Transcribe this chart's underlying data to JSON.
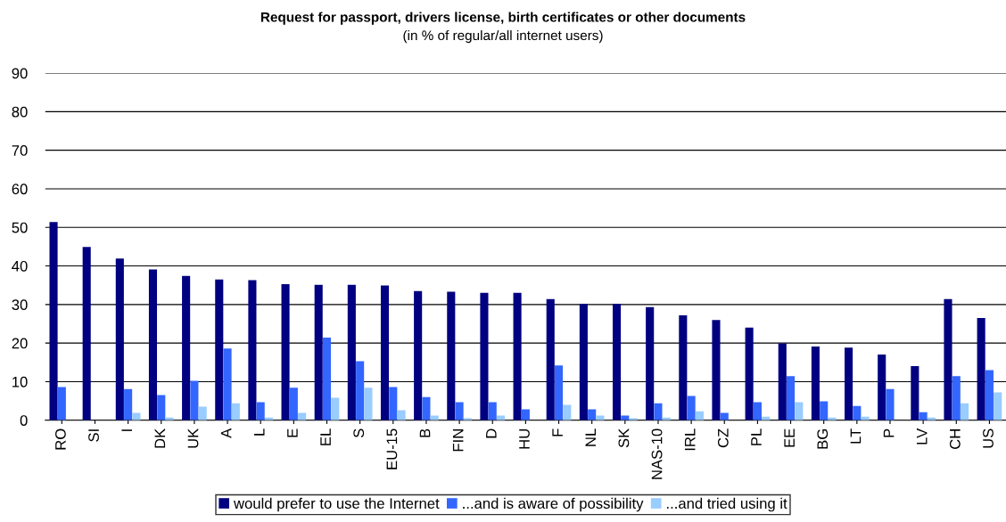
{
  "chart_data": {
    "type": "bar",
    "title": "Request for passport, drivers license, birth certificates or other documents",
    "subtitle": "(in % of regular/all internet users)",
    "categories": [
      "RO",
      "SI",
      "I",
      "DK",
      "UK",
      "A",
      "L",
      "E",
      "EL",
      "S",
      "EU-15",
      "B",
      "FIN",
      "D",
      "HU",
      "F",
      "NL",
      "SK",
      "NAS-10",
      "IRL",
      "CZ",
      "PL",
      "EE",
      "BG",
      "LT",
      "P",
      "LV",
      "CH",
      "US"
    ],
    "series": [
      {
        "name": "would prefer to use the Internet",
        "color": "#000080",
        "values": [
          51.4,
          44.9,
          41.9,
          39.1,
          37.4,
          36.5,
          36.3,
          35.3,
          35.1,
          35.1,
          34.9,
          33.5,
          33.3,
          33.0,
          33.0,
          31.4,
          30.2,
          30.2,
          29.3,
          27.2,
          26.0,
          24.0,
          19.9,
          19.1,
          18.8,
          17.0,
          14.0,
          31.4,
          26.5
        ]
      },
      {
        "name": "...and is aware of possibility",
        "color": "#3366ff",
        "values": [
          8.6,
          null,
          8.1,
          6.5,
          10.2,
          18.6,
          4.7,
          8.4,
          21.4,
          15.3,
          8.6,
          6.0,
          4.7,
          4.7,
          2.8,
          14.2,
          2.8,
          1.2,
          4.4,
          6.3,
          1.9,
          4.7,
          11.4,
          4.9,
          3.7,
          8.1,
          2.1,
          11.4,
          13.0
        ]
      },
      {
        "name": "...and tried using it",
        "color": "#99ccff",
        "values": [
          null,
          null,
          1.9,
          0.7,
          3.5,
          4.4,
          0.7,
          1.9,
          5.8,
          8.4,
          2.6,
          1.2,
          0.5,
          1.2,
          null,
          4.0,
          1.2,
          0.5,
          0.7,
          2.3,
          null,
          0.9,
          4.7,
          0.7,
          0.9,
          null,
          0.7,
          4.4,
          7.2
        ]
      }
    ],
    "ylim": [
      0,
      90
    ],
    "yticks": [
      0,
      10,
      20,
      30,
      40,
      50,
      60,
      70,
      80,
      90
    ],
    "grid": "y",
    "legend": "bottom"
  }
}
